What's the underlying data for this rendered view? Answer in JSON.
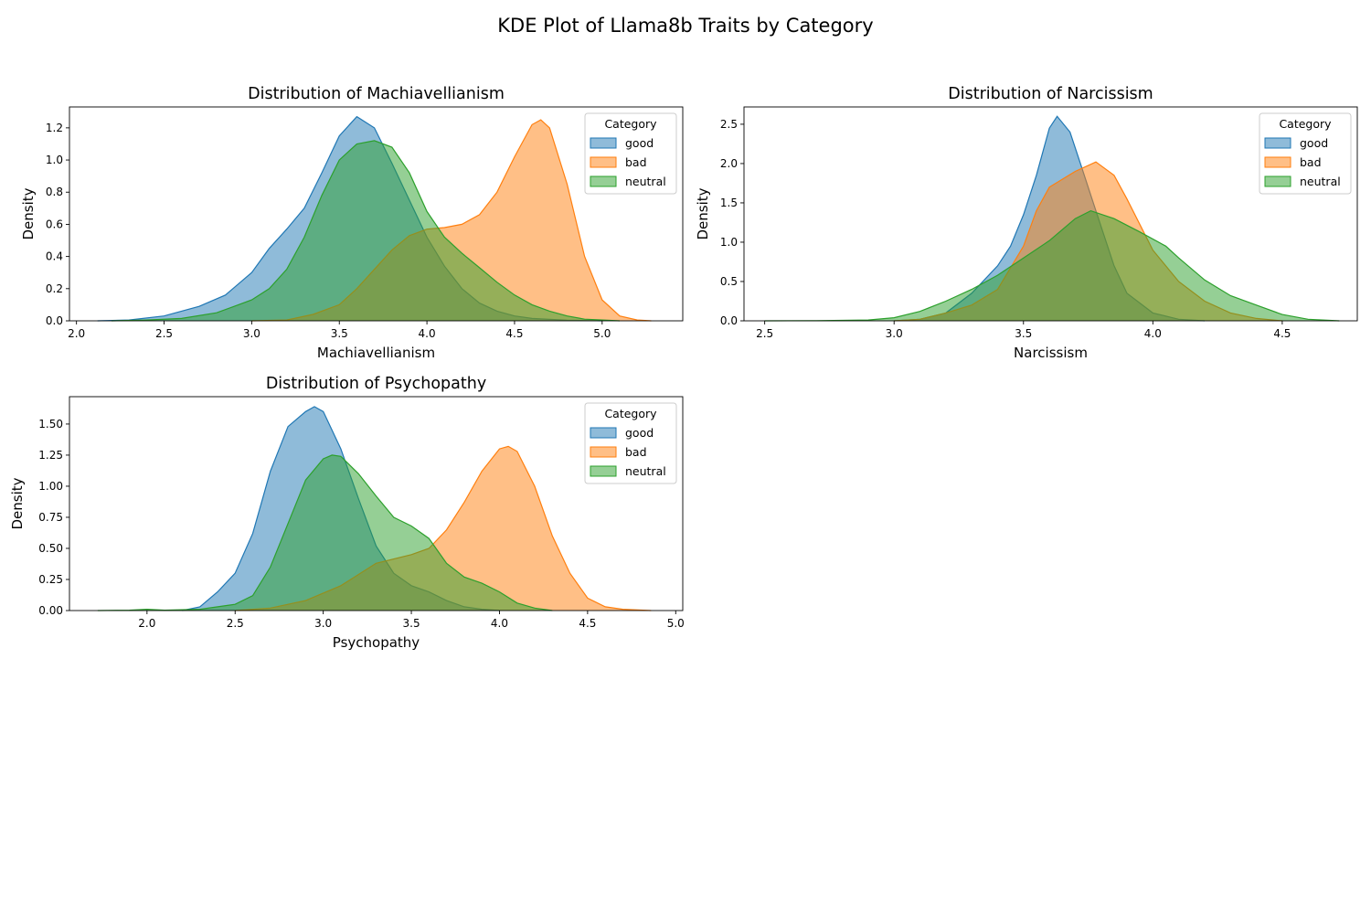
{
  "figure": {
    "suptitle": "KDE Plot of Llama8b Traits by Category"
  },
  "colors": {
    "good": "#1f77b4",
    "bad": "#ff7f0e",
    "neutral": "#2ca02c"
  },
  "chart_data": [
    {
      "type": "area",
      "title": "Distribution of Machiavellianism",
      "xlabel": "Machiavellianism",
      "ylabel": "Density",
      "xlim": [
        1.96,
        5.46
      ],
      "ylim": [
        0,
        1.33
      ],
      "xticks": [
        "2.0",
        "2.5",
        "3.0",
        "3.5",
        "4.0",
        "4.5",
        "5.0"
      ],
      "yticks": [
        "0.0",
        "0.2",
        "0.4",
        "0.6",
        "0.8",
        "1.0",
        "1.2"
      ],
      "legend": {
        "title": "Category",
        "placement": "top-right"
      },
      "series": [
        {
          "name": "good",
          "color": "#1f77b4",
          "points": [
            [
              2.12,
              0
            ],
            [
              2.3,
              0.005
            ],
            [
              2.5,
              0.03
            ],
            [
              2.7,
              0.09
            ],
            [
              2.85,
              0.16
            ],
            [
              3.0,
              0.3
            ],
            [
              3.1,
              0.45
            ],
            [
              3.2,
              0.57
            ],
            [
              3.3,
              0.7
            ],
            [
              3.4,
              0.92
            ],
            [
              3.5,
              1.15
            ],
            [
              3.6,
              1.27
            ],
            [
              3.7,
              1.2
            ],
            [
              3.8,
              0.98
            ],
            [
              3.9,
              0.75
            ],
            [
              4.0,
              0.52
            ],
            [
              4.1,
              0.34
            ],
            [
              4.2,
              0.2
            ],
            [
              4.3,
              0.11
            ],
            [
              4.4,
              0.06
            ],
            [
              4.5,
              0.03
            ],
            [
              4.6,
              0.015
            ],
            [
              4.8,
              0.004
            ],
            [
              5.0,
              0
            ]
          ]
        },
        {
          "name": "bad",
          "color": "#ff7f0e",
          "points": [
            [
              3.0,
              0
            ],
            [
              3.2,
              0.005
            ],
            [
              3.35,
              0.04
            ],
            [
              3.5,
              0.1
            ],
            [
              3.6,
              0.2
            ],
            [
              3.7,
              0.32
            ],
            [
              3.8,
              0.44
            ],
            [
              3.9,
              0.53
            ],
            [
              4.0,
              0.57
            ],
            [
              4.1,
              0.58
            ],
            [
              4.2,
              0.6
            ],
            [
              4.3,
              0.66
            ],
            [
              4.4,
              0.8
            ],
            [
              4.5,
              1.02
            ],
            [
              4.6,
              1.22
            ],
            [
              4.65,
              1.25
            ],
            [
              4.7,
              1.2
            ],
            [
              4.8,
              0.85
            ],
            [
              4.9,
              0.4
            ],
            [
              5.0,
              0.13
            ],
            [
              5.1,
              0.03
            ],
            [
              5.2,
              0.005
            ],
            [
              5.28,
              0
            ]
          ]
        },
        {
          "name": "neutral",
          "color": "#2ca02c",
          "points": [
            [
              2.2,
              0
            ],
            [
              2.4,
              0.005
            ],
            [
              2.6,
              0.015
            ],
            [
              2.8,
              0.05
            ],
            [
              3.0,
              0.13
            ],
            [
              3.1,
              0.2
            ],
            [
              3.2,
              0.32
            ],
            [
              3.3,
              0.52
            ],
            [
              3.4,
              0.78
            ],
            [
              3.5,
              1.0
            ],
            [
              3.6,
              1.1
            ],
            [
              3.7,
              1.12
            ],
            [
              3.8,
              1.08
            ],
            [
              3.9,
              0.92
            ],
            [
              4.0,
              0.68
            ],
            [
              4.1,
              0.52
            ],
            [
              4.2,
              0.42
            ],
            [
              4.3,
              0.33
            ],
            [
              4.4,
              0.24
            ],
            [
              4.5,
              0.16
            ],
            [
              4.6,
              0.1
            ],
            [
              4.7,
              0.06
            ],
            [
              4.8,
              0.03
            ],
            [
              4.9,
              0.01
            ],
            [
              5.1,
              0
            ]
          ]
        }
      ]
    },
    {
      "type": "area",
      "title": "Distribution of Narcissism",
      "xlabel": "Narcissism",
      "ylabel": "Density",
      "xlim": [
        2.42,
        4.79
      ],
      "ylim": [
        0,
        2.72
      ],
      "xticks": [
        "2.5",
        "3.0",
        "3.5",
        "4.0",
        "4.5"
      ],
      "yticks": [
        "0.0",
        "0.5",
        "1.0",
        "1.5",
        "2.0",
        "2.5"
      ],
      "legend": {
        "title": "Category",
        "placement": "top-right"
      },
      "series": [
        {
          "name": "good",
          "color": "#1f77b4",
          "points": [
            [
              3.0,
              0
            ],
            [
              3.1,
              0.02
            ],
            [
              3.2,
              0.1
            ],
            [
              3.3,
              0.35
            ],
            [
              3.4,
              0.7
            ],
            [
              3.45,
              0.95
            ],
            [
              3.5,
              1.35
            ],
            [
              3.55,
              1.85
            ],
            [
              3.6,
              2.45
            ],
            [
              3.63,
              2.6
            ],
            [
              3.68,
              2.4
            ],
            [
              3.72,
              2.0
            ],
            [
              3.78,
              1.4
            ],
            [
              3.85,
              0.7
            ],
            [
              3.9,
              0.35
            ],
            [
              4.0,
              0.1
            ],
            [
              4.1,
              0.02
            ],
            [
              4.2,
              0
            ]
          ]
        },
        {
          "name": "bad",
          "color": "#ff7f0e",
          "points": [
            [
              3.0,
              0
            ],
            [
              3.1,
              0.02
            ],
            [
              3.2,
              0.1
            ],
            [
              3.3,
              0.2
            ],
            [
              3.4,
              0.4
            ],
            [
              3.5,
              0.95
            ],
            [
              3.55,
              1.4
            ],
            [
              3.6,
              1.7
            ],
            [
              3.7,
              1.9
            ],
            [
              3.78,
              2.02
            ],
            [
              3.85,
              1.85
            ],
            [
              3.9,
              1.55
            ],
            [
              4.0,
              0.9
            ],
            [
              4.1,
              0.5
            ],
            [
              4.2,
              0.25
            ],
            [
              4.3,
              0.1
            ],
            [
              4.4,
              0.03
            ],
            [
              4.5,
              0
            ]
          ]
        },
        {
          "name": "neutral",
          "color": "#2ca02c",
          "points": [
            [
              2.5,
              0
            ],
            [
              2.7,
              0.002
            ],
            [
              2.9,
              0.01
            ],
            [
              3.0,
              0.04
            ],
            [
              3.1,
              0.12
            ],
            [
              3.2,
              0.25
            ],
            [
              3.3,
              0.4
            ],
            [
              3.4,
              0.58
            ],
            [
              3.5,
              0.8
            ],
            [
              3.6,
              1.02
            ],
            [
              3.7,
              1.3
            ],
            [
              3.76,
              1.4
            ],
            [
              3.85,
              1.3
            ],
            [
              3.95,
              1.13
            ],
            [
              4.05,
              0.95
            ],
            [
              4.1,
              0.8
            ],
            [
              4.2,
              0.52
            ],
            [
              4.3,
              0.32
            ],
            [
              4.4,
              0.2
            ],
            [
              4.5,
              0.08
            ],
            [
              4.6,
              0.02
            ],
            [
              4.72,
              0
            ]
          ]
        }
      ]
    },
    {
      "type": "area",
      "title": "Distribution of Psychopathy",
      "xlabel": "Psychopathy",
      "ylabel": "Density",
      "xlim": [
        1.56,
        5.04
      ],
      "ylim": [
        0,
        1.72
      ],
      "xticks": [
        "2.0",
        "2.5",
        "3.0",
        "3.5",
        "4.0",
        "4.5",
        "5.0"
      ],
      "yticks": [
        "0.00",
        "0.25",
        "0.50",
        "0.75",
        "1.00",
        "1.25",
        "1.50"
      ],
      "legend": {
        "title": "Category",
        "placement": "top-right"
      },
      "series": [
        {
          "name": "good",
          "color": "#1f77b4",
          "points": [
            [
              2.2,
              0
            ],
            [
              2.3,
              0.03
            ],
            [
              2.4,
              0.15
            ],
            [
              2.5,
              0.3
            ],
            [
              2.6,
              0.62
            ],
            [
              2.7,
              1.12
            ],
            [
              2.8,
              1.48
            ],
            [
              2.9,
              1.6
            ],
            [
              2.95,
              1.64
            ],
            [
              3.0,
              1.6
            ],
            [
              3.1,
              1.3
            ],
            [
              3.2,
              0.9
            ],
            [
              3.3,
              0.52
            ],
            [
              3.4,
              0.3
            ],
            [
              3.5,
              0.2
            ],
            [
              3.6,
              0.15
            ],
            [
              3.7,
              0.08
            ],
            [
              3.8,
              0.03
            ],
            [
              3.9,
              0.01
            ],
            [
              4.0,
              0
            ]
          ]
        },
        {
          "name": "bad",
          "color": "#ff7f0e",
          "points": [
            [
              2.5,
              0
            ],
            [
              2.7,
              0.02
            ],
            [
              2.9,
              0.08
            ],
            [
              3.1,
              0.2
            ],
            [
              3.3,
              0.38
            ],
            [
              3.5,
              0.45
            ],
            [
              3.6,
              0.5
            ],
            [
              3.7,
              0.65
            ],
            [
              3.8,
              0.87
            ],
            [
              3.9,
              1.12
            ],
            [
              4.0,
              1.3
            ],
            [
              4.05,
              1.32
            ],
            [
              4.1,
              1.28
            ],
            [
              4.2,
              1.0
            ],
            [
              4.3,
              0.6
            ],
            [
              4.4,
              0.3
            ],
            [
              4.5,
              0.1
            ],
            [
              4.6,
              0.03
            ],
            [
              4.7,
              0.01
            ],
            [
              4.86,
              0
            ]
          ]
        },
        {
          "name": "neutral",
          "color": "#2ca02c",
          "points": [
            [
              1.72,
              0
            ],
            [
              1.9,
              0.003
            ],
            [
              2.0,
              0.01
            ],
            [
              2.1,
              0.003
            ],
            [
              2.3,
              0.01
            ],
            [
              2.5,
              0.05
            ],
            [
              2.6,
              0.12
            ],
            [
              2.7,
              0.35
            ],
            [
              2.8,
              0.7
            ],
            [
              2.9,
              1.05
            ],
            [
              3.0,
              1.22
            ],
            [
              3.05,
              1.25
            ],
            [
              3.1,
              1.24
            ],
            [
              3.2,
              1.1
            ],
            [
              3.3,
              0.92
            ],
            [
              3.4,
              0.75
            ],
            [
              3.5,
              0.68
            ],
            [
              3.6,
              0.58
            ],
            [
              3.7,
              0.38
            ],
            [
              3.8,
              0.27
            ],
            [
              3.9,
              0.22
            ],
            [
              4.0,
              0.15
            ],
            [
              4.1,
              0.06
            ],
            [
              4.2,
              0.02
            ],
            [
              4.3,
              0
            ]
          ]
        }
      ]
    }
  ]
}
